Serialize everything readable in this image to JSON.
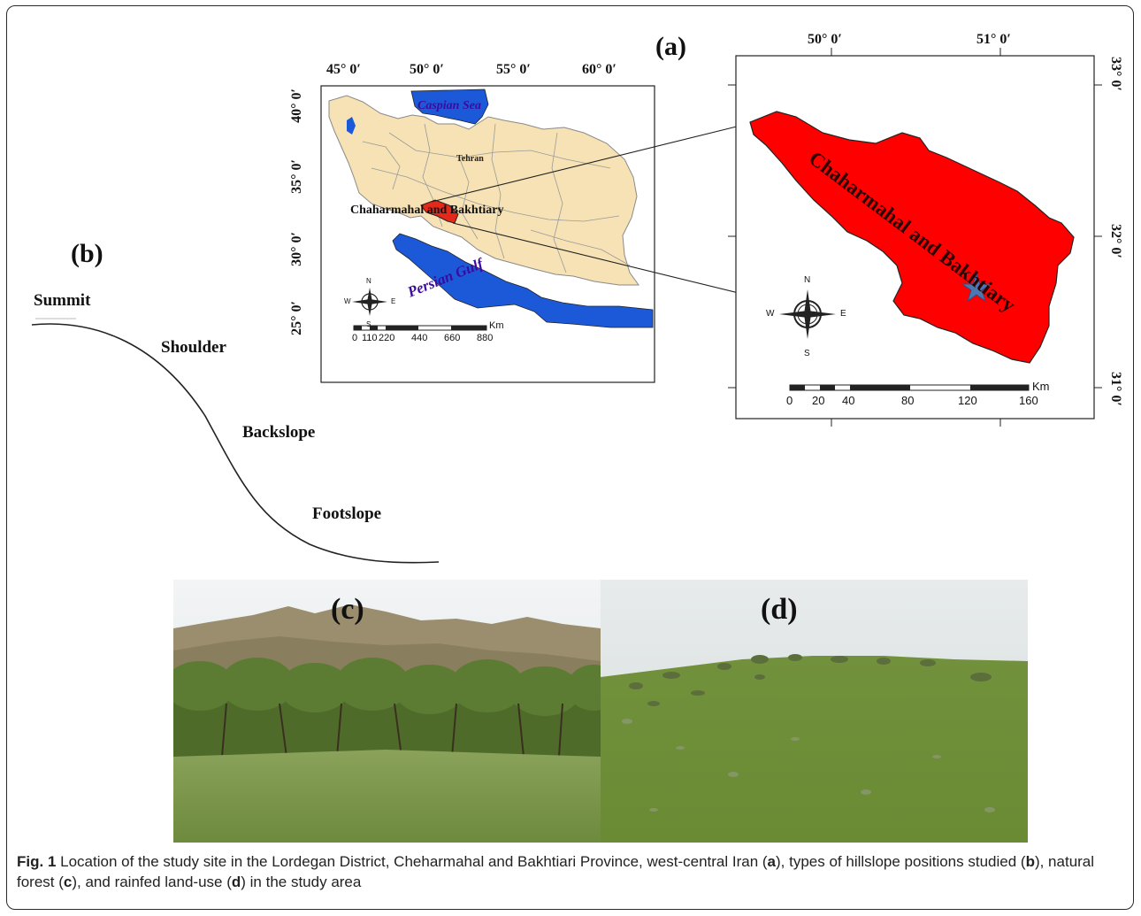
{
  "panel_a": {
    "label": "(a)",
    "iran_map": {
      "lon_ticks": [
        "45° 0′",
        "50° 0′",
        "55° 0′",
        "60° 0′"
      ],
      "lat_ticks": [
        "40° 0′",
        "35° 0′",
        "30° 0′",
        "25° 0′"
      ],
      "caspian": "Caspian Sea",
      "persian_gulf": "Persian Gulf",
      "tehran": "Tehran",
      "province": "Chaharmahal and Bakhtiary",
      "compass": {
        "n": "N",
        "s": "S",
        "e": "E",
        "w": "W"
      },
      "scale_ticks": [
        "0",
        "110",
        "220",
        "440",
        "660",
        "880"
      ],
      "scale_unit": "Km",
      "colors": {
        "land": "#f6e2b4",
        "water": "#1c59d8",
        "province": "#e6281a"
      }
    },
    "province_map": {
      "lon_ticks": [
        "50° 0′",
        "51° 0′"
      ],
      "lat_ticks": [
        "33° 0′",
        "32° 0′",
        "31° 0′"
      ],
      "province": "Chaharmahal and Bakhtiary",
      "compass": {
        "n": "N",
        "s": "S",
        "e": "E",
        "w": "W"
      },
      "scale_ticks": [
        "0",
        "20",
        "40",
        "80",
        "120",
        "160"
      ],
      "scale_unit": "Km",
      "colors": {
        "province": "#ff0000",
        "star": "#4a78b4"
      }
    }
  },
  "panel_b": {
    "label": "(b)",
    "positions": [
      "Summit",
      "Shoulder",
      "Backslope",
      "Footslope"
    ]
  },
  "panel_c": {
    "label": "(c)"
  },
  "panel_d": {
    "label": "(d)"
  },
  "caption": {
    "fig": "Fig. 1",
    "t1": " Location of the study site in the Lordegan District, Cheharmahal and Bakhtiari Province, west-central Iran (",
    "a": "a",
    "t2": "), types of hillslope positions studied (",
    "b": "b",
    "t3": "), natural forest (",
    "c": "c",
    "t4": "), and rainfed land-use (",
    "d": "d",
    "t5": ") in the study area"
  }
}
